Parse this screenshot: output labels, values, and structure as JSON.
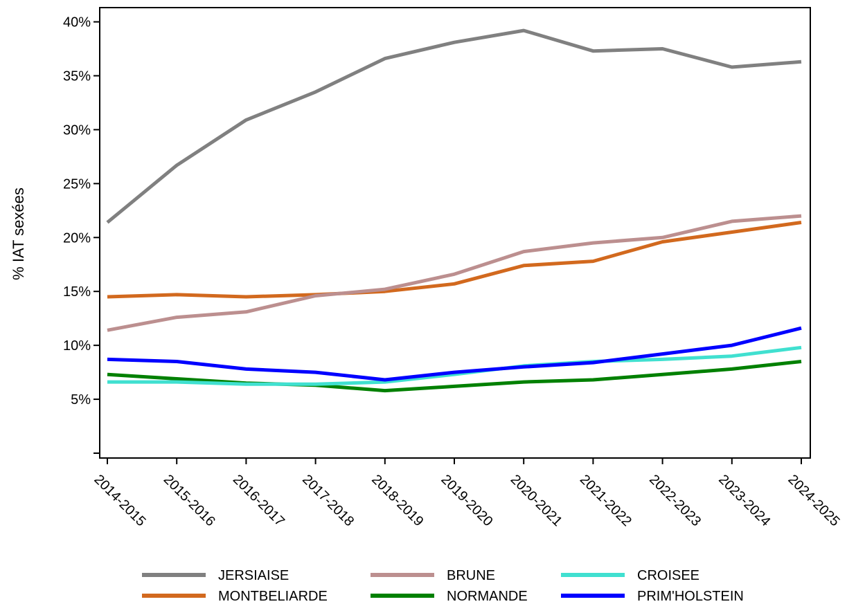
{
  "chart_data": {
    "type": "line",
    "title": "",
    "xlabel": "",
    "ylabel": "% IAT sexées",
    "ylim": [
      0,
      0.41
    ],
    "yticks": [
      0.05,
      0.1,
      0.15,
      0.2,
      0.25,
      0.3,
      0.35,
      0.4
    ],
    "ytick_labels": [
      "5%",
      "10%",
      "15%",
      "20%",
      "25%",
      "30%",
      "35%",
      "40%"
    ],
    "grid": false,
    "legend_position": "bottom",
    "categories": [
      "2014-2015",
      "2015-2016",
      "2016-2017",
      "2017-2018",
      "2018-2019",
      "2019-2020",
      "2020-2021",
      "2021-2022",
      "2022-2023",
      "2023-2024",
      "2024-2025"
    ],
    "series": [
      {
        "name": "JERSIAISE",
        "color": "#808080",
        "values": [
          0.214,
          0.267,
          0.309,
          0.335,
          0.366,
          0.381,
          0.392,
          0.373,
          0.375,
          0.358,
          0.363
        ]
      },
      {
        "name": "MONTBELIARDE",
        "color": "#d2691e",
        "values": [
          0.145,
          0.147,
          0.145,
          0.147,
          0.15,
          0.157,
          0.174,
          0.178,
          0.196,
          0.205,
          0.214
        ]
      },
      {
        "name": "BRUNE",
        "color": "#bc8f8f",
        "values": [
          0.114,
          0.126,
          0.131,
          0.146,
          0.152,
          0.166,
          0.187,
          0.195,
          0.2,
          0.215,
          0.22
        ]
      },
      {
        "name": "NORMANDE",
        "color": "#008000",
        "values": [
          0.073,
          0.069,
          0.065,
          0.063,
          0.058,
          0.062,
          0.066,
          0.068,
          0.073,
          0.078,
          0.085
        ]
      },
      {
        "name": "CROISEE",
        "color": "#40e0d0",
        "values": [
          0.066,
          0.066,
          0.064,
          0.064,
          0.066,
          0.073,
          0.081,
          0.085,
          0.087,
          0.09,
          0.098
        ]
      },
      {
        "name": "PRIM'HOLSTEIN",
        "color": "#0000ff",
        "values": [
          0.087,
          0.085,
          0.078,
          0.075,
          0.068,
          0.075,
          0.08,
          0.084,
          0.092,
          0.1,
          0.116
        ]
      }
    ]
  }
}
